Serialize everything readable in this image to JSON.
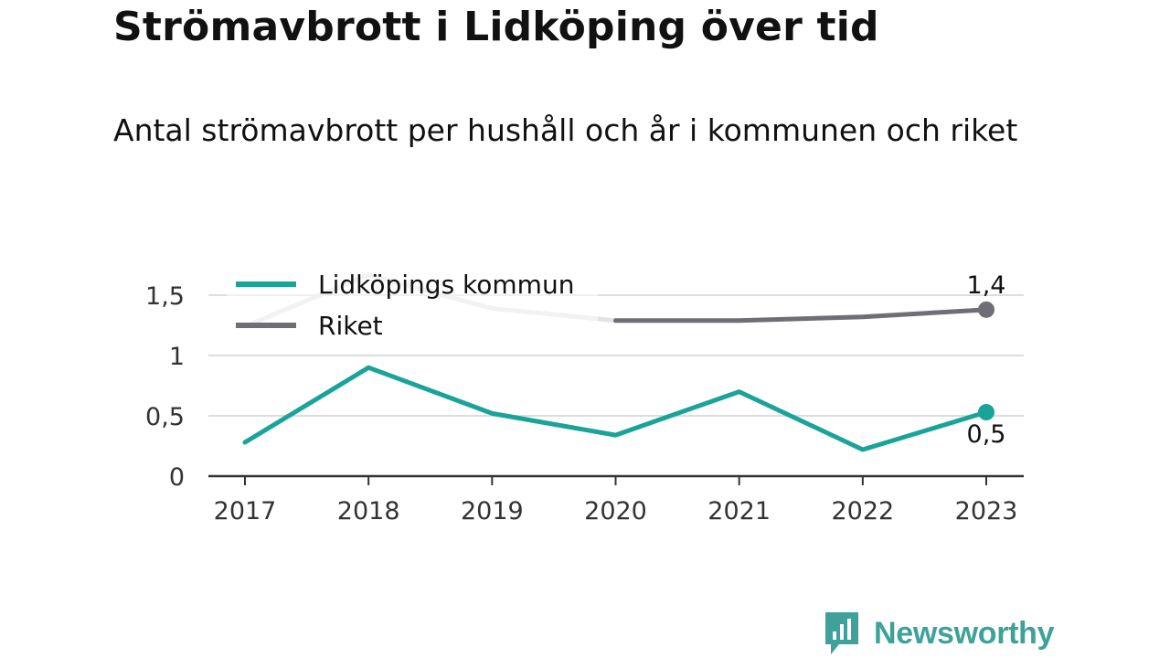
{
  "title": "Strömavbrott i Lidköping över tid",
  "subtitle": "Antal strömavbrott per hushåll och år i kommunen och riket",
  "brand": {
    "name": "Newsworthy",
    "color": "#3ea29a"
  },
  "chart_data": {
    "type": "line",
    "x": [
      "2017",
      "2018",
      "2019",
      "2020",
      "2021",
      "2022",
      "2023"
    ],
    "ylim": [
      0,
      1.75
    ],
    "yticks": [
      0,
      0.5,
      1,
      1.5
    ],
    "ytick_labels": [
      "0",
      "0,5",
      "1",
      "1,5"
    ],
    "grid": true,
    "legend_position": "top-left",
    "series": [
      {
        "name": "Lidköpings kommun",
        "color": "#1aa398",
        "values": [
          0.28,
          0.9,
          0.52,
          0.34,
          0.7,
          0.22,
          0.53
        ],
        "end_label": "0,5"
      },
      {
        "name": "Riket",
        "color": "#6e6e74",
        "faded_color": "#e3e3e3",
        "values": [
          1.24,
          1.67,
          1.39,
          1.29,
          1.29,
          1.32,
          1.38
        ],
        "end_label": "1,4"
      }
    ]
  }
}
